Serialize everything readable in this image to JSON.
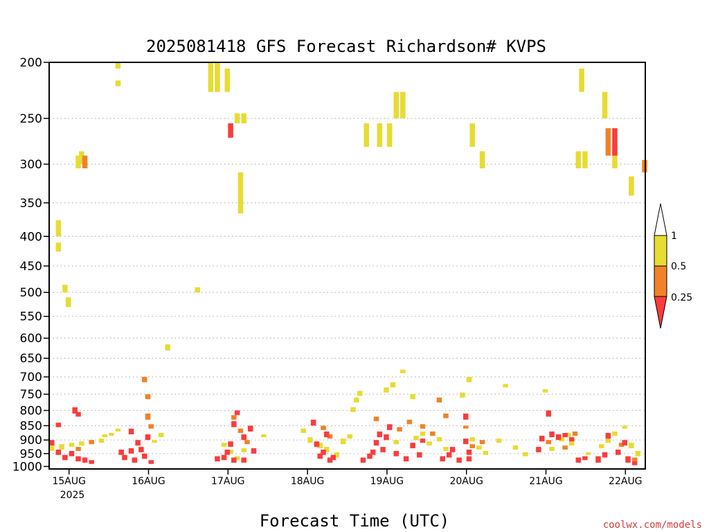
{
  "chart_data": {
    "type": "heatmap",
    "title": "2025081418 GFS Forecast Richardson# KVPS",
    "xlabel": "Forecast Time (UTC)",
    "ylabel": "",
    "credit": "coolwx.com/models",
    "x_ticks": [
      {
        "label": "15AUG",
        "sub": "2025",
        "hour": 6
      },
      {
        "label": "16AUG",
        "sub": "",
        "hour": 30
      },
      {
        "label": "17AUG",
        "sub": "",
        "hour": 54
      },
      {
        "label": "18AUG",
        "sub": "",
        "hour": 78
      },
      {
        "label": "19AUG",
        "sub": "",
        "hour": 102
      },
      {
        "label": "20AUG",
        "sub": "",
        "hour": 126
      },
      {
        "label": "21AUG",
        "sub": "",
        "hour": 150
      },
      {
        "label": "22AUG",
        "sub": "",
        "hour": 174
      }
    ],
    "x_range_hours": [
      0,
      180
    ],
    "y_ticks": [
      200,
      250,
      300,
      350,
      400,
      450,
      500,
      550,
      600,
      650,
      700,
      750,
      800,
      850,
      900,
      950,
      1000
    ],
    "y_range_hpa": [
      200,
      1010
    ],
    "gridlines_at": [
      250,
      300,
      350,
      400,
      450,
      500,
      550,
      600,
      650,
      700,
      750,
      800,
      850,
      900,
      950
    ],
    "legend": {
      "placement": "right",
      "labels": [
        "1",
        "0.5",
        "0.25"
      ],
      "bins": [
        {
          "name": "0.5-1",
          "color": "#e6dc32"
        },
        {
          "name": "0.25-0.5",
          "color": "#f08228"
        },
        {
          "name": "<0.25",
          "color": "#fa3c3c"
        }
      ],
      "over_color": "#ffffff"
    },
    "ground_color": "#a0522d",
    "series": [
      {
        "name": "0.5-1",
        "color": "#e6dc32",
        "cells": [
          [
            20,
            200,
            205
          ],
          [
            20,
            215,
            220
          ],
          [
            2,
            375,
            400
          ],
          [
            2,
            410,
            425
          ],
          [
            4,
            485,
            500
          ],
          [
            5,
            510,
            530
          ],
          [
            8,
            290,
            305
          ],
          [
            9,
            285,
            300
          ],
          [
            44,
            490,
            500
          ],
          [
            35,
            615,
            630
          ],
          [
            48,
            200,
            225
          ],
          [
            50,
            200,
            225
          ],
          [
            53,
            205,
            225
          ],
          [
            56,
            245,
            255
          ],
          [
            58,
            245,
            255
          ],
          [
            57,
            310,
            340
          ],
          [
            57,
            340,
            365
          ],
          [
            95,
            255,
            280
          ],
          [
            99,
            255,
            280
          ],
          [
            102,
            255,
            280
          ],
          [
            104,
            225,
            250
          ],
          [
            106,
            225,
            250
          ],
          [
            127,
            255,
            280
          ],
          [
            130,
            285,
            305
          ],
          [
            159,
            285,
            305
          ],
          [
            161,
            285,
            305
          ],
          [
            160,
            205,
            225
          ],
          [
            167,
            225,
            250
          ],
          [
            170,
            285,
            305
          ],
          [
            175,
            315,
            340
          ],
          [
            0,
            920,
            940
          ],
          [
            3,
            915,
            935
          ],
          [
            6,
            910,
            925
          ],
          [
            9,
            905,
            920
          ],
          [
            12,
            900,
            915
          ],
          [
            15,
            895,
            910
          ],
          [
            16,
            880,
            890
          ],
          [
            18,
            875,
            885
          ],
          [
            20,
            860,
            870
          ],
          [
            29,
            885,
            895
          ],
          [
            31,
            900,
            910
          ],
          [
            33,
            875,
            890
          ],
          [
            52,
            910,
            925
          ],
          [
            54,
            935,
            950
          ],
          [
            56,
            960,
            975
          ],
          [
            58,
            930,
            945
          ],
          [
            64,
            880,
            890
          ],
          [
            76,
            860,
            875
          ],
          [
            78,
            890,
            910
          ],
          [
            81,
            910,
            930
          ],
          [
            83,
            925,
            945
          ],
          [
            86,
            945,
            965
          ],
          [
            88,
            895,
            915
          ],
          [
            90,
            880,
            895
          ],
          [
            91,
            790,
            805
          ],
          [
            92,
            760,
            775
          ],
          [
            93,
            740,
            755
          ],
          [
            101,
            730,
            745
          ],
          [
            103,
            715,
            730
          ],
          [
            106,
            680,
            690
          ],
          [
            109,
            750,
            765
          ],
          [
            104,
            900,
            915
          ],
          [
            110,
            885,
            900
          ],
          [
            112,
            870,
            885
          ],
          [
            114,
            905,
            920
          ],
          [
            117,
            890,
            905
          ],
          [
            119,
            925,
            940
          ],
          [
            124,
            745,
            760
          ],
          [
            126,
            700,
            715
          ],
          [
            127,
            890,
            905
          ],
          [
            129,
            920,
            935
          ],
          [
            131,
            940,
            955
          ],
          [
            135,
            895,
            910
          ],
          [
            137,
            720,
            730
          ],
          [
            140,
            920,
            935
          ],
          [
            143,
            945,
            960
          ],
          [
            151,
            925,
            940
          ],
          [
            154,
            890,
            905
          ],
          [
            156,
            875,
            890
          ],
          [
            149,
            735,
            745
          ],
          [
            157,
            905,
            920
          ],
          [
            162,
            945,
            955
          ],
          [
            166,
            915,
            930
          ],
          [
            168,
            895,
            910
          ],
          [
            170,
            870,
            885
          ],
          [
            173,
            850,
            860
          ],
          [
            175,
            910,
            930
          ],
          [
            177,
            940,
            960
          ]
        ]
      },
      {
        "name": "0.25-0.5",
        "color": "#f08228",
        "cells": [
          [
            10,
            290,
            305
          ],
          [
            12,
            900,
            915
          ],
          [
            8,
            925,
            940
          ],
          [
            28,
            700,
            715
          ],
          [
            29,
            750,
            765
          ],
          [
            29,
            810,
            830
          ],
          [
            30,
            845,
            860
          ],
          [
            55,
            815,
            830
          ],
          [
            57,
            860,
            875
          ],
          [
            59,
            900,
            915
          ],
          [
            82,
            850,
            865
          ],
          [
            84,
            880,
            895
          ],
          [
            98,
            820,
            835
          ],
          [
            105,
            855,
            870
          ],
          [
            108,
            830,
            845
          ],
          [
            112,
            845,
            860
          ],
          [
            115,
            870,
            885
          ],
          [
            117,
            760,
            775
          ],
          [
            119,
            810,
            825
          ],
          [
            125,
            850,
            860
          ],
          [
            127,
            915,
            930
          ],
          [
            130,
            900,
            915
          ],
          [
            150,
            900,
            915
          ],
          [
            155,
            920,
            935
          ],
          [
            158,
            870,
            885
          ],
          [
            168,
            260,
            290
          ],
          [
            172,
            910,
            925
          ],
          [
            176,
            965,
            980
          ],
          [
            179,
            295,
            310
          ]
        ]
      },
      {
        "name": "<0.25",
        "color": "#fa3c3c",
        "cells": [
          [
            2,
            840,
            855
          ],
          [
            0,
            900,
            920
          ],
          [
            2,
            935,
            955
          ],
          [
            4,
            955,
            975
          ],
          [
            6,
            940,
            960
          ],
          [
            8,
            960,
            980
          ],
          [
            10,
            965,
            985
          ],
          [
            12,
            975,
            990
          ],
          [
            7,
            790,
            810
          ],
          [
            8,
            805,
            820
          ],
          [
            24,
            860,
            880
          ],
          [
            21,
            935,
            955
          ],
          [
            22,
            955,
            975
          ],
          [
            24,
            930,
            950
          ],
          [
            25,
            965,
            985
          ],
          [
            26,
            900,
            920
          ],
          [
            27,
            925,
            945
          ],
          [
            28,
            950,
            970
          ],
          [
            29,
            880,
            900
          ],
          [
            30,
            975,
            990
          ],
          [
            50,
            960,
            980
          ],
          [
            52,
            955,
            975
          ],
          [
            53,
            935,
            955
          ],
          [
            54,
            905,
            925
          ],
          [
            55,
            965,
            985
          ],
          [
            54,
            255,
            270
          ],
          [
            55,
            835,
            855
          ],
          [
            58,
            880,
            900
          ],
          [
            60,
            850,
            870
          ],
          [
            61,
            930,
            950
          ],
          [
            56,
            800,
            815
          ],
          [
            58,
            965,
            985
          ],
          [
            79,
            830,
            850
          ],
          [
            80,
            905,
            925
          ],
          [
            81,
            950,
            970
          ],
          [
            82,
            935,
            955
          ],
          [
            83,
            870,
            890
          ],
          [
            84,
            965,
            985
          ],
          [
            85,
            955,
            975
          ],
          [
            94,
            965,
            985
          ],
          [
            96,
            950,
            970
          ],
          [
            97,
            935,
            955
          ],
          [
            98,
            900,
            920
          ],
          [
            99,
            870,
            890
          ],
          [
            100,
            925,
            945
          ],
          [
            101,
            880,
            900
          ],
          [
            102,
            845,
            865
          ],
          [
            104,
            940,
            960
          ],
          [
            107,
            960,
            980
          ],
          [
            109,
            910,
            930
          ],
          [
            111,
            945,
            965
          ],
          [
            112,
            895,
            910
          ],
          [
            118,
            960,
            980
          ],
          [
            120,
            945,
            965
          ],
          [
            121,
            925,
            945
          ],
          [
            123,
            965,
            985
          ],
          [
            125,
            810,
            830
          ],
          [
            125,
            895,
            915
          ],
          [
            126,
            935,
            955
          ],
          [
            126,
            960,
            980
          ],
          [
            147,
            925,
            945
          ],
          [
            148,
            885,
            905
          ],
          [
            151,
            870,
            890
          ],
          [
            153,
            880,
            900
          ],
          [
            150,
            800,
            820
          ],
          [
            155,
            875,
            890
          ],
          [
            157,
            890,
            905
          ],
          [
            159,
            965,
            985
          ],
          [
            161,
            960,
            975
          ],
          [
            165,
            960,
            985
          ],
          [
            167,
            945,
            965
          ],
          [
            168,
            875,
            895
          ],
          [
            171,
            935,
            955
          ],
          [
            174,
            960,
            985
          ],
          [
            170,
            260,
            290
          ],
          [
            176,
            980,
            995
          ],
          [
            173,
            900,
            920
          ]
        ]
      }
    ]
  }
}
